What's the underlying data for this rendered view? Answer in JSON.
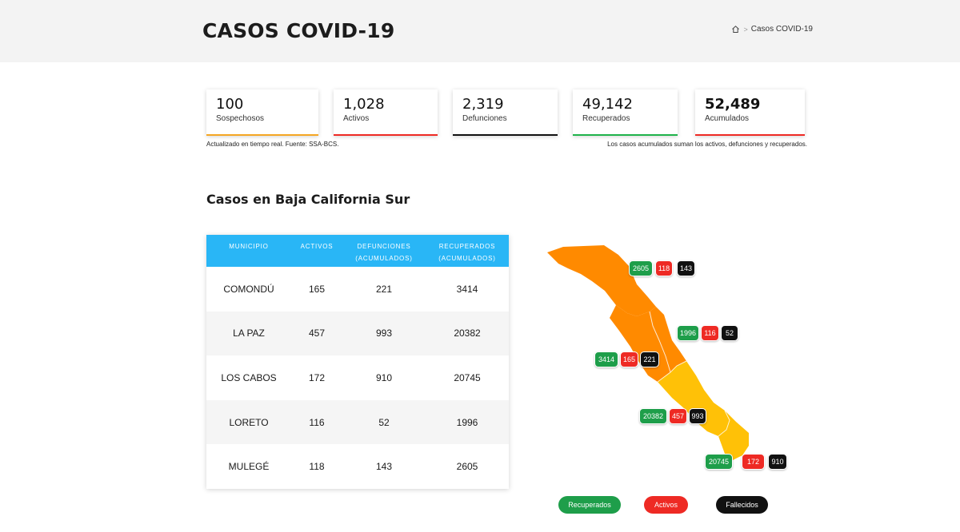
{
  "header": {
    "title": "CASOS COVID-19",
    "breadcrumb_current": "Casos COVID-19",
    "breadcrumb_sep": ">"
  },
  "cards": [
    {
      "value": "100",
      "label": "Sospechosos",
      "color": "#f5a623"
    },
    {
      "value": "1,028",
      "label": "Activos",
      "color": "#ee2a24"
    },
    {
      "value": "2,319",
      "label": "Defunciones",
      "color": "#111111"
    },
    {
      "value": "49,142",
      "label": "Recuperados",
      "color": "#1fb34a"
    },
    {
      "value": "52,489",
      "label": "Acumulados",
      "color": "#ee2a24"
    }
  ],
  "notes": {
    "left": "Actualizado en tiempo real. Fuente: SSA-BCS.",
    "right": "Los casos acumulados suman los activos, defunciones y recuperados."
  },
  "section_title": "Casos en Baja California Sur",
  "table": {
    "header_color": "#29b6f6",
    "columns": [
      {
        "line1": "MUNICIPIO",
        "line2": ""
      },
      {
        "line1": "ACTIVOS",
        "line2": ""
      },
      {
        "line1": "DEFUNCIONES",
        "line2": "(ACUMULADOS)"
      },
      {
        "line1": "RECUPERADOS",
        "line2": "(ACUMULADOS)"
      }
    ],
    "rows": [
      {
        "municipio": "COMONDÚ",
        "activos": "165",
        "defunciones": "221",
        "recuperados": "3414"
      },
      {
        "municipio": "LA PAZ",
        "activos": "457",
        "defunciones": "993",
        "recuperados": "20382"
      },
      {
        "municipio": "LOS CABOS",
        "activos": "172",
        "defunciones": "910",
        "recuperados": "20745"
      },
      {
        "municipio": "LORETO",
        "activos": "116",
        "defunciones": "52",
        "recuperados": "1996"
      },
      {
        "municipio": "MULEGÉ",
        "activos": "118",
        "defunciones": "143",
        "recuperados": "2605"
      }
    ]
  },
  "map": {
    "colors": {
      "north": "#ff8a00",
      "south": "#ffc107"
    },
    "badges": {
      "mulege": {
        "recuperados": "2605",
        "activos": "118",
        "fallecidos": "143"
      },
      "loreto": {
        "recuperados": "1996",
        "activos": "116",
        "fallecidos": "52"
      },
      "comondu": {
        "recuperados": "3414",
        "activos": "165",
        "fallecidos": "221"
      },
      "la_paz": {
        "recuperados": "20382",
        "activos": "457",
        "fallecidos": "993"
      },
      "los_cabos": {
        "recuperados": "20745",
        "activos": "172",
        "fallecidos": "910"
      }
    }
  },
  "legend": {
    "recuperados": "Recuperados",
    "activos": "Activos",
    "fallecidos": "Fallecidos"
  }
}
